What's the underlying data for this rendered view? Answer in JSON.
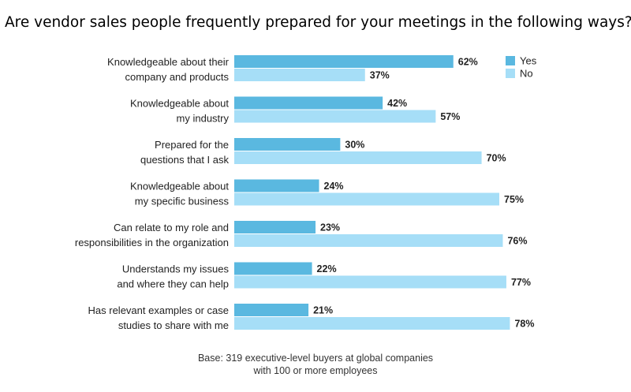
{
  "title": "Are vendor sales people frequently prepared for your meetings in the following ways?",
  "footnote": {
    "line1": "Base: 319 executive-level buyers at global companies",
    "line2": "with 100 or more employees"
  },
  "chart_data": {
    "type": "bar",
    "orientation": "horizontal",
    "categories": [
      [
        "Knowledgeable about their",
        "company and products"
      ],
      [
        "Knowledgeable about",
        "my industry"
      ],
      [
        "Prepared for the",
        "questions that I ask"
      ],
      [
        "Knowledgeable about",
        "my specific business"
      ],
      [
        "Can relate to my role and",
        "responsibilities in the organization"
      ],
      [
        "Understands my issues",
        "and where they can help"
      ],
      [
        "Has relevant examples or case",
        "studies to share with me"
      ]
    ],
    "series": [
      {
        "name": "Yes",
        "values": [
          62,
          42,
          30,
          24,
          23,
          22,
          21
        ],
        "color": "#5ab8e0"
      },
      {
        "name": "No",
        "values": [
          37,
          57,
          70,
          75,
          76,
          77,
          78
        ],
        "color": "#a6def7"
      }
    ],
    "value_suffix": "%",
    "xlim": [
      0,
      100
    ],
    "legend": "top-right",
    "grid": false
  }
}
